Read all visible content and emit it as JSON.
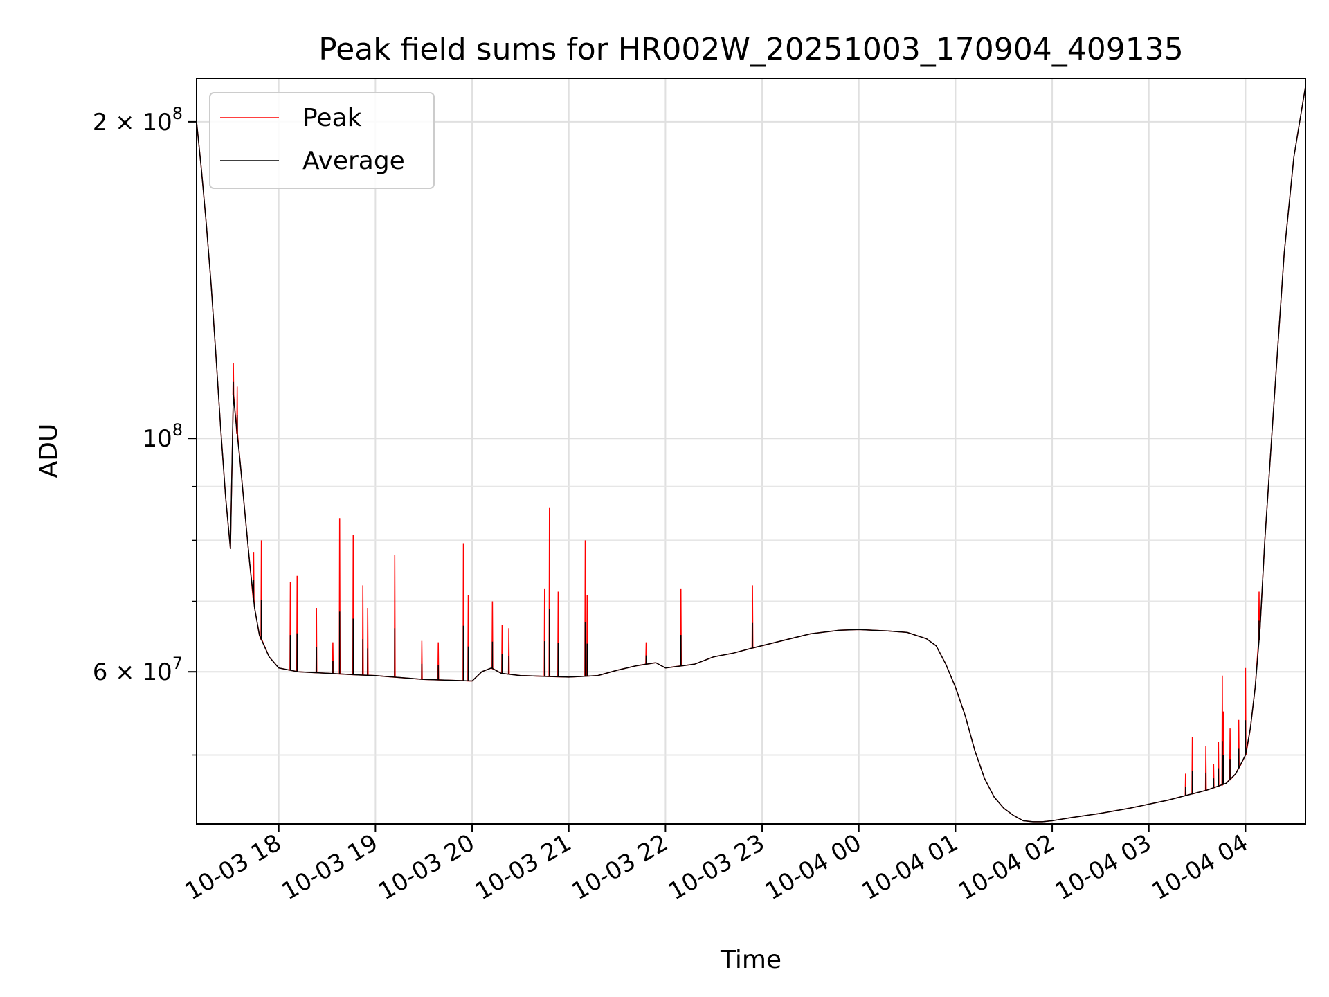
{
  "chart_data": {
    "type": "line",
    "title": "Peak field sums for HR002W_20251003_170904_409135",
    "xlabel": "Time",
    "ylabel": "ADU",
    "yscale": "log",
    "ylim": [
      43000000,
      220000000
    ],
    "xlim_hours_since_2025_10_03_00": [
      17.15,
      28.62
    ],
    "grid": true,
    "legend_position": "upper left",
    "x_tick_labels": [
      "10-03 18",
      "10-03 19",
      "10-03 20",
      "10-03 21",
      "10-03 22",
      "10-03 23",
      "10-04 00",
      "10-04 01",
      "10-04 02",
      "10-04 03",
      "10-04 04"
    ],
    "x_tick_hours": [
      18,
      19,
      20,
      21,
      22,
      23,
      24,
      25,
      26,
      27,
      28
    ],
    "y_tick_labels": [
      {
        "value": 200000000,
        "mantissa": "2",
        "exponent": "8"
      },
      {
        "value": 100000000,
        "mantissa": "",
        "exponent": "8"
      },
      {
        "value": 60000000,
        "mantissa": "6",
        "exponent": "7"
      }
    ],
    "y_minor_ticks": [
      50000000,
      70000000,
      80000000,
      90000000
    ],
    "series": [
      {
        "name": "Peak",
        "color": "#ff0000",
        "baseline_source": "Average",
        "spikes": [
          {
            "x": 17.53,
            "y": 118000000
          },
          {
            "x": 17.57,
            "y": 112000000
          },
          {
            "x": 17.74,
            "y": 78000000
          },
          {
            "x": 17.82,
            "y": 80000000
          },
          {
            "x": 18.12,
            "y": 73000000
          },
          {
            "x": 18.19,
            "y": 74000000
          },
          {
            "x": 18.39,
            "y": 69000000
          },
          {
            "x": 18.56,
            "y": 64000000
          },
          {
            "x": 18.63,
            "y": 84000000
          },
          {
            "x": 18.77,
            "y": 81000000
          },
          {
            "x": 18.87,
            "y": 72500000
          },
          {
            "x": 18.92,
            "y": 69000000
          },
          {
            "x": 19.2,
            "y": 77500000
          },
          {
            "x": 19.48,
            "y": 64200000
          },
          {
            "x": 19.65,
            "y": 64000000
          },
          {
            "x": 19.91,
            "y": 79500000
          },
          {
            "x": 19.96,
            "y": 71000000
          },
          {
            "x": 20.21,
            "y": 70000000
          },
          {
            "x": 20.31,
            "y": 66500000
          },
          {
            "x": 20.38,
            "y": 66000000
          },
          {
            "x": 20.75,
            "y": 72000000
          },
          {
            "x": 20.8,
            "y": 86000000
          },
          {
            "x": 20.89,
            "y": 71500000
          },
          {
            "x": 21.17,
            "y": 80000000
          },
          {
            "x": 21.19,
            "y": 71000000
          },
          {
            "x": 21.8,
            "y": 64000000
          },
          {
            "x": 22.16,
            "y": 72000000
          },
          {
            "x": 22.9,
            "y": 72500000
          },
          {
            "x": 27.38,
            "y": 48000000
          },
          {
            "x": 27.45,
            "y": 52000000
          },
          {
            "x": 27.59,
            "y": 51000000
          },
          {
            "x": 27.67,
            "y": 49000000
          },
          {
            "x": 27.72,
            "y": 51500000
          },
          {
            "x": 27.76,
            "y": 59500000
          },
          {
            "x": 27.77,
            "y": 55000000
          },
          {
            "x": 27.84,
            "y": 53000000
          },
          {
            "x": 27.93,
            "y": 54000000
          },
          {
            "x": 28.0,
            "y": 60500000
          },
          {
            "x": 28.14,
            "y": 71500000
          }
        ]
      },
      {
        "name": "Average",
        "color": "#000000",
        "x": [
          17.15,
          17.2,
          17.25,
          17.3,
          17.35,
          17.4,
          17.45,
          17.5,
          17.53,
          17.56,
          17.6,
          17.65,
          17.7,
          17.75,
          17.8,
          17.9,
          18.0,
          18.2,
          18.5,
          18.8,
          19.0,
          19.5,
          20.0,
          20.1,
          20.2,
          20.3,
          20.5,
          21.0,
          21.3,
          21.5,
          21.7,
          21.9,
          22.0,
          22.3,
          22.5,
          22.7,
          22.9,
          23.2,
          23.5,
          23.8,
          24.0,
          24.3,
          24.5,
          24.7,
          24.8,
          24.9,
          25.0,
          25.1,
          25.2,
          25.3,
          25.4,
          25.5,
          25.6,
          25.7,
          25.8,
          25.9,
          26.0,
          26.2,
          26.5,
          26.8,
          27.0,
          27.2,
          27.4,
          27.6,
          27.8,
          27.9,
          28.0,
          28.05,
          28.1,
          28.15,
          28.2,
          28.3,
          28.4,
          28.5,
          28.62
        ],
        "y": [
          200000000,
          180000000,
          160000000,
          140000000,
          120000000,
          102000000,
          88000000,
          78500000,
          110000000,
          103000000,
          95000000,
          85000000,
          76000000,
          69000000,
          65000000,
          62000000,
          60500000,
          60000000,
          59800000,
          59600000,
          59500000,
          59000000,
          58800000,
          60000000,
          60500000,
          59800000,
          59500000,
          59300000,
          59500000,
          60200000,
          60800000,
          61200000,
          60500000,
          61000000,
          62000000,
          62500000,
          63200000,
          64200000,
          65200000,
          65700000,
          65800000,
          65600000,
          65400000,
          64500000,
          63500000,
          61000000,
          58000000,
          54500000,
          50500000,
          47500000,
          45600000,
          44500000,
          43800000,
          43300000,
          43200000,
          43200000,
          43300000,
          43600000,
          44000000,
          44500000,
          44900000,
          45300000,
          45800000,
          46300000,
          47000000,
          48000000,
          50000000,
          53000000,
          58000000,
          66000000,
          80000000,
          110000000,
          150000000,
          185000000,
          216000000
        ]
      }
    ]
  }
}
